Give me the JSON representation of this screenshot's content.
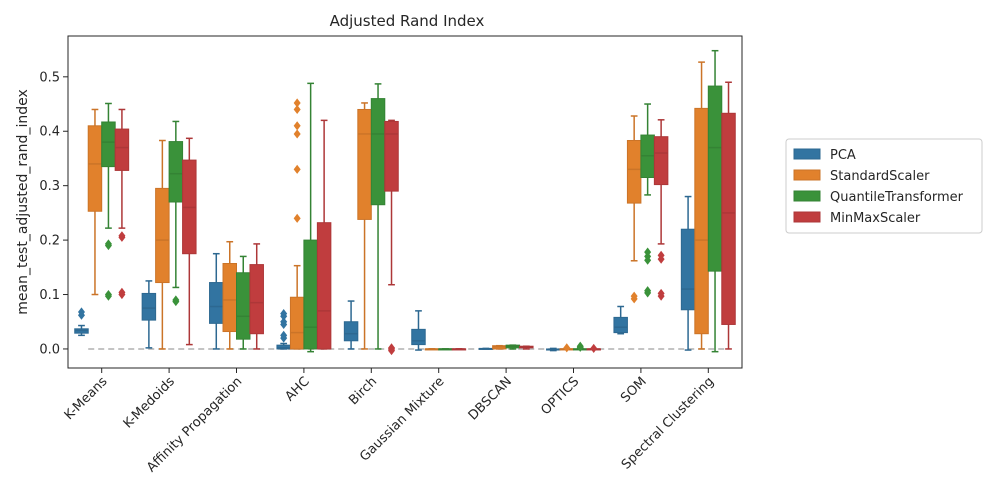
{
  "chart_data": {
    "type": "box",
    "title": "Adjusted Rand Index",
    "xlabel": "",
    "ylabel": "mean_test_adjusted_rand_index",
    "ylim": [
      -0.035,
      0.575
    ],
    "yticks": [
      0.0,
      0.1,
      0.2,
      0.3,
      0.4,
      0.5
    ],
    "ytick_labels": [
      "0.0",
      "0.1",
      "0.2",
      "0.3",
      "0.4",
      "0.5"
    ],
    "reference_line": 0.0,
    "legend_position": "right",
    "categories": [
      "K-Means",
      "K-Medoids",
      "Affinity Propagation",
      "AHC",
      "Birch",
      "Gaussian Mixture",
      "DBSCAN",
      "OPTICS",
      "SOM",
      "Spectral Clustering"
    ],
    "series": [
      {
        "name": "PCA",
        "color": "#3274a1",
        "boxes": [
          {
            "whislo": 0.025,
            "q1": 0.029,
            "med": 0.034,
            "q3": 0.037,
            "whishi": 0.043,
            "fliers": [
              0.062,
              0.068
            ]
          },
          {
            "whislo": 0.002,
            "q1": 0.053,
            "med": 0.075,
            "q3": 0.102,
            "whishi": 0.125,
            "fliers": []
          },
          {
            "whislo": 0.0,
            "q1": 0.047,
            "med": 0.078,
            "q3": 0.122,
            "whishi": 0.175,
            "fliers": []
          },
          {
            "whislo": 0.0,
            "q1": 0.0,
            "med": 0.002,
            "q3": 0.007,
            "whishi": 0.01,
            "fliers": [
              0.02,
              0.025,
              0.045,
              0.05,
              0.06,
              0.065
            ]
          },
          {
            "whislo": 0.0,
            "q1": 0.015,
            "med": 0.028,
            "q3": 0.05,
            "whishi": 0.088,
            "fliers": []
          },
          {
            "whislo": -0.002,
            "q1": 0.008,
            "med": 0.015,
            "q3": 0.036,
            "whishi": 0.07,
            "fliers": []
          },
          {
            "whislo": 0.0,
            "q1": 0.0,
            "med": 0.0,
            "q3": 0.001,
            "whishi": 0.001,
            "fliers": []
          },
          {
            "whislo": -0.003,
            "q1": -0.002,
            "med": -0.001,
            "q3": 0.0,
            "whishi": 0.001,
            "fliers": []
          },
          {
            "whislo": 0.028,
            "q1": 0.03,
            "med": 0.04,
            "q3": 0.058,
            "whishi": 0.078,
            "fliers": []
          },
          {
            "whislo": -0.002,
            "q1": 0.072,
            "med": 0.11,
            "q3": 0.22,
            "whishi": 0.28,
            "fliers": []
          }
        ]
      },
      {
        "name": "StandardScaler",
        "color": "#e1812c",
        "boxes": [
          {
            "whislo": 0.1,
            "q1": 0.253,
            "med": 0.34,
            "q3": 0.41,
            "whishi": 0.44,
            "fliers": []
          },
          {
            "whislo": 0.0,
            "q1": 0.122,
            "med": 0.2,
            "q3": 0.295,
            "whishi": 0.383,
            "fliers": []
          },
          {
            "whislo": 0.0,
            "q1": 0.032,
            "med": 0.09,
            "q3": 0.157,
            "whishi": 0.197,
            "fliers": []
          },
          {
            "whislo": 0.0,
            "q1": 0.0,
            "med": 0.03,
            "q3": 0.095,
            "whishi": 0.153,
            "fliers": [
              0.24,
              0.33,
              0.395,
              0.41,
              0.44,
              0.452
            ]
          },
          {
            "whislo": 0.0,
            "q1": 0.238,
            "med": 0.395,
            "q3": 0.44,
            "whishi": 0.452,
            "fliers": []
          },
          {
            "whislo": 0.0,
            "q1": 0.0,
            "med": 0.0,
            "q3": 0.0,
            "whishi": 0.0,
            "fliers": []
          },
          {
            "whislo": 0.0,
            "q1": 0.0,
            "med": 0.004,
            "q3": 0.006,
            "whishi": 0.006,
            "fliers": []
          },
          {
            "whislo": 0.0,
            "q1": 0.0,
            "med": 0.0,
            "q3": 0.0,
            "whishi": 0.0,
            "fliers": [
              0.002
            ]
          },
          {
            "whislo": 0.162,
            "q1": 0.268,
            "med": 0.33,
            "q3": 0.383,
            "whishi": 0.428,
            "fliers": [
              0.092,
              0.097
            ]
          },
          {
            "whislo": 0.0,
            "q1": 0.028,
            "med": 0.2,
            "q3": 0.442,
            "whishi": 0.527,
            "fliers": []
          }
        ]
      },
      {
        "name": "QuantileTransformer",
        "color": "#3a923a",
        "boxes": [
          {
            "whislo": 0.222,
            "q1": 0.335,
            "med": 0.38,
            "q3": 0.417,
            "whishi": 0.451,
            "fliers": [
              0.097,
              0.1,
              0.19,
              0.193
            ]
          },
          {
            "whislo": 0.113,
            "q1": 0.27,
            "med": 0.322,
            "q3": 0.381,
            "whishi": 0.418,
            "fliers": [
              0.087,
              0.09
            ]
          },
          {
            "whislo": 0.0,
            "q1": 0.018,
            "med": 0.06,
            "q3": 0.14,
            "whishi": 0.17,
            "fliers": []
          },
          {
            "whislo": -0.005,
            "q1": 0.0,
            "med": 0.04,
            "q3": 0.2,
            "whishi": 0.488,
            "fliers": []
          },
          {
            "whislo": 0.0,
            "q1": 0.265,
            "med": 0.395,
            "q3": 0.46,
            "whishi": 0.487,
            "fliers": []
          },
          {
            "whislo": 0.0,
            "q1": 0.0,
            "med": 0.0,
            "q3": 0.0,
            "whishi": 0.0,
            "fliers": []
          },
          {
            "whislo": 0.0,
            "q1": 0.002,
            "med": 0.005,
            "q3": 0.007,
            "whishi": 0.007,
            "fliers": []
          },
          {
            "whislo": 0.0,
            "q1": 0.0,
            "med": 0.0,
            "q3": 0.0,
            "whishi": 0.0,
            "fliers": [
              0.003,
              0.005
            ]
          },
          {
            "whislo": 0.283,
            "q1": 0.315,
            "med": 0.355,
            "q3": 0.393,
            "whishi": 0.45,
            "fliers": [
              0.103,
              0.107,
              0.163,
              0.17,
              0.178
            ]
          },
          {
            "whislo": -0.005,
            "q1": 0.143,
            "med": 0.37,
            "q3": 0.483,
            "whishi": 0.548,
            "fliers": []
          }
        ]
      },
      {
        "name": "MinMaxScaler",
        "color": "#c03d3e",
        "boxes": [
          {
            "whislo": 0.222,
            "q1": 0.328,
            "med": 0.37,
            "q3": 0.404,
            "whishi": 0.44,
            "fliers": [
              0.1,
              0.104,
              0.205,
              0.208
            ]
          },
          {
            "whislo": 0.008,
            "q1": 0.175,
            "med": 0.26,
            "q3": 0.347,
            "whishi": 0.387,
            "fliers": []
          },
          {
            "whislo": 0.0,
            "q1": 0.028,
            "med": 0.085,
            "q3": 0.155,
            "whishi": 0.193,
            "fliers": []
          },
          {
            "whislo": 0.0,
            "q1": 0.0,
            "med": 0.07,
            "q3": 0.232,
            "whishi": 0.42,
            "fliers": []
          },
          {
            "whislo": 0.118,
            "q1": 0.29,
            "med": 0.395,
            "q3": 0.418,
            "whishi": 0.42,
            "fliers": [
              -0.003,
              0.0,
              0.002
            ]
          },
          {
            "whislo": 0.0,
            "q1": 0.0,
            "med": 0.0,
            "q3": 0.0,
            "whishi": 0.0,
            "fliers": []
          },
          {
            "whislo": 0.0,
            "q1": 0.002,
            "med": 0.004,
            "q3": 0.005,
            "whishi": 0.005,
            "fliers": []
          },
          {
            "whislo": 0.0,
            "q1": 0.0,
            "med": 0.0,
            "q3": 0.0,
            "whishi": 0.0,
            "fliers": [
              0.001
            ]
          },
          {
            "whislo": 0.193,
            "q1": 0.302,
            "med": 0.36,
            "q3": 0.39,
            "whishi": 0.421,
            "fliers": [
              0.097,
              0.102,
              0.165,
              0.172
            ]
          },
          {
            "whislo": 0.0,
            "q1": 0.045,
            "med": 0.25,
            "q3": 0.433,
            "whishi": 0.49,
            "fliers": []
          }
        ]
      }
    ]
  }
}
